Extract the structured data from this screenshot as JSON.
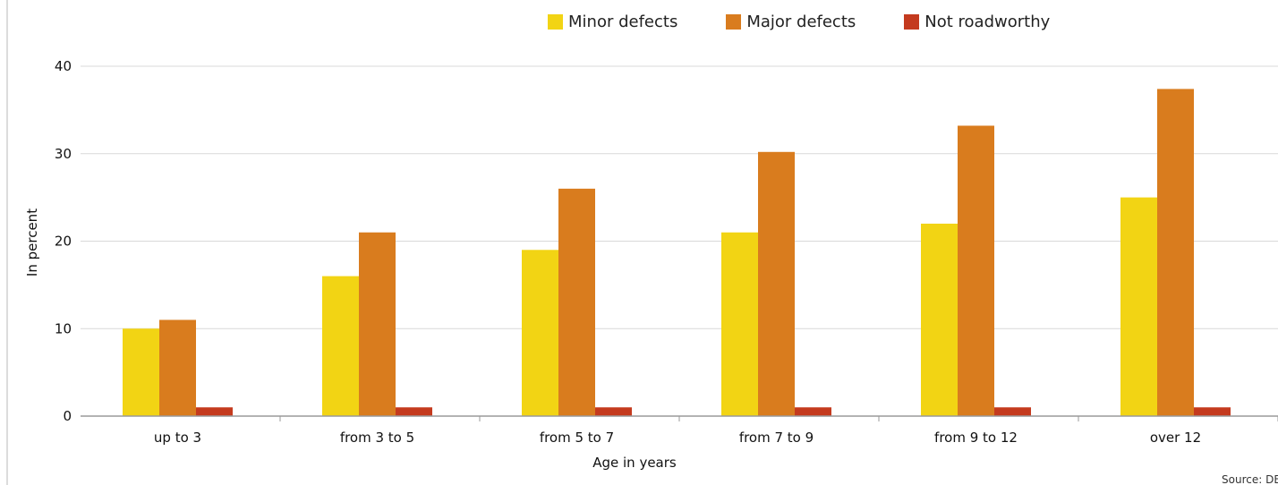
{
  "chart_data": {
    "type": "bar",
    "categories": [
      "up to 3",
      "from 3 to 5",
      "from 5 to 7",
      "from 7 to 9",
      "from 9 to 12",
      "over 12"
    ],
    "series": [
      {
        "name": "Minor defects",
        "color": "#f2d414",
        "values": [
          10,
          16,
          19,
          21,
          22,
          25
        ]
      },
      {
        "name": "Major defects",
        "color": "#d97c1e",
        "values": [
          11,
          21,
          26,
          30.2,
          33.2,
          37.4
        ]
      },
      {
        "name": "Not roadworthy",
        "color": "#c43a1e",
        "values": [
          1,
          1,
          1,
          1,
          1,
          1
        ]
      }
    ],
    "xlabel": "Age in years",
    "ylabel": "In percent",
    "ylim": [
      0,
      40
    ],
    "yticks": [
      0,
      10,
      20,
      30,
      40
    ],
    "grid": true,
    "legend_position": "top-right",
    "source": "Source: DEK"
  }
}
